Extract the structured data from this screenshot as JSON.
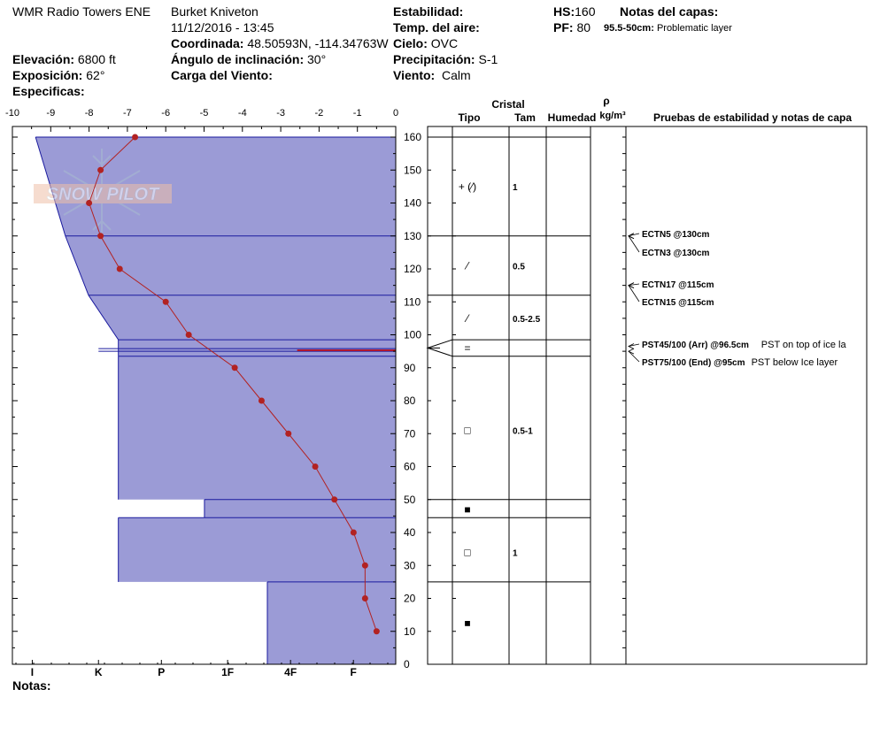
{
  "header": {
    "location": "WMR Radio Towers ENE",
    "observer": "Burket Kniveton",
    "datetime": "11/12/2016 - 13:45",
    "coord_label": "Coordinada:",
    "coord_value": "48.50593N, -114.34763W",
    "elev_label": "Elevación:",
    "elev_value": "6800 ft",
    "aspect_label": "Exposición:",
    "aspect_value": "62°",
    "specifics_label": "Especificas:",
    "slope_label": "Ángulo de inclinación:",
    "slope_value": "30°",
    "wind_load_label": "Carga del Viento:",
    "stability_label": "Estabilidad:",
    "air_temp_label": "Temp. del aire:",
    "sky_label": "Cielo:",
    "sky_value": "OVC",
    "precip_label": "Precipitación:",
    "precip_value": "S-1",
    "wind_label": "Viento:",
    "wind_value": "Calm",
    "hs_label": "HS:",
    "hs_value": "160",
    "pf_label": "PF:",
    "pf_value": "80",
    "layer_notes_label": "Notas del capas:",
    "layer_note_depth": "95.5-50cm:",
    "layer_note_text": "Problematic layer",
    "notes_label": "Notas:"
  },
  "logo_text": "SNOW PILOT",
  "table_headers": {
    "crystal": "Cristal",
    "type": "Tipo",
    "size": "Tam",
    "moisture": "Humedad",
    "rho": "ρ",
    "density_unit": "kg/m³",
    "tests": "Pruebas de estabilidad y notas de capa"
  },
  "layers": [
    {
      "top": 160,
      "bottom": 130,
      "hardness": 0.7,
      "type": "+ (⁄)",
      "size": "1"
    },
    {
      "top": 130,
      "bottom": 112,
      "hardness": 1.6,
      "type": "⁄",
      "size": "0.5"
    },
    {
      "top": 112,
      "bottom": 98.5,
      "hardness": 2.3,
      "type": "⁄",
      "size": "0.5-2.5"
    },
    {
      "top": 98.5,
      "bottom": 93.5,
      "hardness": 3.2,
      "type": "=",
      "size": ""
    },
    {
      "top": 93.5,
      "bottom": 50,
      "hardness": 3.2,
      "type": "□",
      "size": "0.5-1"
    },
    {
      "top": 50,
      "bottom": 44.5,
      "hardness": 5.8,
      "type": "■",
      "size": ""
    },
    {
      "top": 44.5,
      "bottom": 25,
      "hardness": 3.2,
      "type": "□",
      "size": "1"
    },
    {
      "top": 25,
      "bottom": 0,
      "hardness": 7.7,
      "type": "■",
      "size": ""
    }
  ],
  "tests": [
    {
      "label": "ECTN5 @130cm",
      "note": "",
      "depth": 130
    },
    {
      "label": "ECTN3 @130cm",
      "note": "",
      "depth": 130
    },
    {
      "label": "ECTN17 @115cm",
      "note": "",
      "depth": 115
    },
    {
      "label": "ECTN15 @115cm",
      "note": "",
      "depth": 115
    },
    {
      "label": "PST45/100 (Arr) @96.5cm",
      "note": "PST on top of ice la",
      "depth": 96.5
    },
    {
      "label": "PST75/100 (End) @95cm",
      "note": "PST below Ice layer",
      "depth": 95
    }
  ],
  "chart_data": {
    "type": "line",
    "title": "",
    "xlabel": "",
    "ylabel": "",
    "temp_axis": {
      "range": [
        -10,
        0
      ],
      "ticks": [
        "-10",
        "-9",
        "-8",
        "-7",
        "-6",
        "-5",
        "-4",
        "-3",
        "-2",
        "-1",
        "0"
      ]
    },
    "depth_axis": {
      "range": [
        0,
        160
      ],
      "ticks": [
        "0",
        "10",
        "20",
        "30",
        "40",
        "50",
        "60",
        "70",
        "80",
        "90",
        "100",
        "110",
        "120",
        "130",
        "140",
        "150",
        "160"
      ]
    },
    "hardness_axis": {
      "ticks": [
        "I",
        "K",
        "P",
        "1F",
        "4F",
        "F"
      ]
    },
    "series": [
      {
        "x": [
          -6.8,
          -7.7,
          -8.0,
          -7.7,
          -7.2,
          -6.0,
          -5.4,
          -4.2,
          -3.5,
          -2.8,
          -2.1,
          -1.6,
          -1.1,
          -0.8,
          -0.8,
          -0.5
        ],
        "y": [
          160,
          150,
          140,
          130,
          120,
          110,
          100,
          90,
          80,
          70,
          60,
          50,
          40,
          30,
          20,
          10
        ]
      }
    ],
    "grid": false,
    "colors": {
      "temperature": "#b22222",
      "profile_fill": "#9b9bd6",
      "profile_line": "#1a1a9e",
      "ice_line": "#cc0000"
    }
  }
}
